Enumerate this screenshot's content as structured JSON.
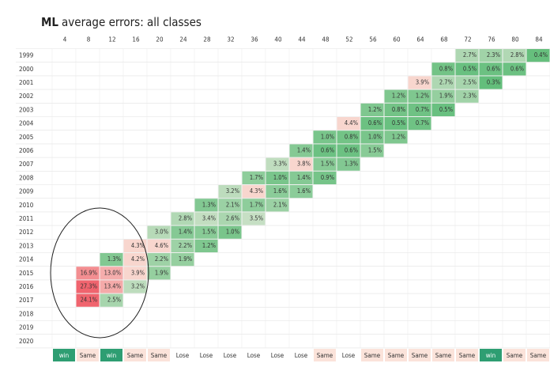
{
  "title_bold": "ML",
  "title": "average errors: all classes",
  "columns": [
    "4",
    "8",
    "12",
    "16",
    "20",
    "24",
    "28",
    "32",
    "36",
    "40",
    "44",
    "48",
    "52",
    "56",
    "60",
    "64",
    "68",
    "72",
    "76",
    "80",
    "84"
  ],
  "rows": [
    {
      "year": "1999",
      "cells": [
        null,
        null,
        null,
        null,
        null,
        null,
        null,
        null,
        null,
        null,
        null,
        null,
        null,
        null,
        null,
        null,
        null,
        "2.7%",
        "2.3%",
        "2.8%",
        "0.4%"
      ]
    },
    {
      "year": "2000",
      "cells": [
        null,
        null,
        null,
        null,
        null,
        null,
        null,
        null,
        null,
        null,
        null,
        null,
        null,
        null,
        null,
        null,
        "0.8%",
        "0.5%",
        "0.6%",
        "0.6%",
        null
      ]
    },
    {
      "year": "2001",
      "cells": [
        null,
        null,
        null,
        null,
        null,
        null,
        null,
        null,
        null,
        null,
        null,
        null,
        null,
        null,
        null,
        "3.9%",
        "2.7%",
        "2.5%",
        "0.3%",
        null,
        null
      ]
    },
    {
      "year": "2002",
      "cells": [
        null,
        null,
        null,
        null,
        null,
        null,
        null,
        null,
        null,
        null,
        null,
        null,
        null,
        null,
        "1.2%",
        "1.2%",
        "1.9%",
        "2.3%",
        null,
        null,
        null
      ]
    },
    {
      "year": "2003",
      "cells": [
        null,
        null,
        null,
        null,
        null,
        null,
        null,
        null,
        null,
        null,
        null,
        null,
        null,
        "1.2%",
        "0.8%",
        "0.7%",
        "0.5%",
        null,
        null,
        null,
        null
      ]
    },
    {
      "year": "2004",
      "cells": [
        null,
        null,
        null,
        null,
        null,
        null,
        null,
        null,
        null,
        null,
        null,
        null,
        "4.4%",
        "0.6%",
        "0.5%",
        "0.7%",
        null,
        null,
        null,
        null,
        null
      ]
    },
    {
      "year": "2005",
      "cells": [
        null,
        null,
        null,
        null,
        null,
        null,
        null,
        null,
        null,
        null,
        null,
        "1.0%",
        "0.8%",
        "1.0%",
        "1.2%",
        null,
        null,
        null,
        null,
        null,
        null
      ]
    },
    {
      "year": "2006",
      "cells": [
        null,
        null,
        null,
        null,
        null,
        null,
        null,
        null,
        null,
        null,
        "1.4%",
        "0.6%",
        "0.6%",
        "1.5%",
        null,
        null,
        null,
        null,
        null,
        null,
        null
      ]
    },
    {
      "year": "2007",
      "cells": [
        null,
        null,
        null,
        null,
        null,
        null,
        null,
        null,
        null,
        "3.3%",
        "3.8%",
        "1.5%",
        "1.3%",
        null,
        null,
        null,
        null,
        null,
        null,
        null,
        null
      ]
    },
    {
      "year": "2008",
      "cells": [
        null,
        null,
        null,
        null,
        null,
        null,
        null,
        null,
        "1.7%",
        "1.0%",
        "1.4%",
        "0.9%",
        null,
        null,
        null,
        null,
        null,
        null,
        null,
        null,
        null
      ]
    },
    {
      "year": "2009",
      "cells": [
        null,
        null,
        null,
        null,
        null,
        null,
        null,
        "3.2%",
        "4.3%",
        "1.6%",
        "1.6%",
        null,
        null,
        null,
        null,
        null,
        null,
        null,
        null,
        null,
        null
      ]
    },
    {
      "year": "2010",
      "cells": [
        null,
        null,
        null,
        null,
        null,
        null,
        "1.3%",
        "2.1%",
        "1.7%",
        "2.1%",
        null,
        null,
        null,
        null,
        null,
        null,
        null,
        null,
        null,
        null,
        null
      ]
    },
    {
      "year": "2011",
      "cells": [
        null,
        null,
        null,
        null,
        null,
        "2.8%",
        "3.4%",
        "2.6%",
        "3.5%",
        null,
        null,
        null,
        null,
        null,
        null,
        null,
        null,
        null,
        null,
        null,
        null
      ]
    },
    {
      "year": "2012",
      "cells": [
        null,
        null,
        null,
        null,
        "3.0%",
        "1.4%",
        "1.5%",
        "1.0%",
        null,
        null,
        null,
        null,
        null,
        null,
        null,
        null,
        null,
        null,
        null,
        null,
        null
      ]
    },
    {
      "year": "2013",
      "cells": [
        null,
        null,
        null,
        "4.3%",
        "4.6%",
        "2.2%",
        "1.2%",
        null,
        null,
        null,
        null,
        null,
        null,
        null,
        null,
        null,
        null,
        null,
        null,
        null,
        null
      ]
    },
    {
      "year": "2014",
      "cells": [
        null,
        null,
        "1.3%",
        "4.2%",
        "2.2%",
        "1.9%",
        null,
        null,
        null,
        null,
        null,
        null,
        null,
        null,
        null,
        null,
        null,
        null,
        null,
        null,
        null
      ]
    },
    {
      "year": "2015",
      "cells": [
        null,
        "16.9%",
        "13.0%",
        "3.9%",
        "1.9%",
        null,
        null,
        null,
        null,
        null,
        null,
        null,
        null,
        null,
        null,
        null,
        null,
        null,
        null,
        null,
        null
      ]
    },
    {
      "year": "2016",
      "cells": [
        null,
        "27.3%",
        "13.4%",
        "3.2%",
        null,
        null,
        null,
        null,
        null,
        null,
        null,
        null,
        null,
        null,
        null,
        null,
        null,
        null,
        null,
        null,
        null
      ]
    },
    {
      "year": "2017",
      "cells": [
        null,
        "24.1%",
        "2.5%",
        null,
        null,
        null,
        null,
        null,
        null,
        null,
        null,
        null,
        null,
        null,
        null,
        null,
        null,
        null,
        null,
        null,
        null
      ]
    },
    {
      "year": "2018",
      "cells": []
    },
    {
      "year": "2019",
      "cells": []
    },
    {
      "year": "2020",
      "cells": []
    }
  ],
  "footer": [
    "win",
    "Same",
    "win",
    "Same",
    "Same",
    "Lose",
    "Lose",
    "Lose",
    "Lose",
    "Lose",
    "Lose",
    "Same",
    "Lose",
    "Same",
    "Same",
    "Same",
    "Same",
    "Same",
    "win",
    "Same",
    "Same"
  ]
}
